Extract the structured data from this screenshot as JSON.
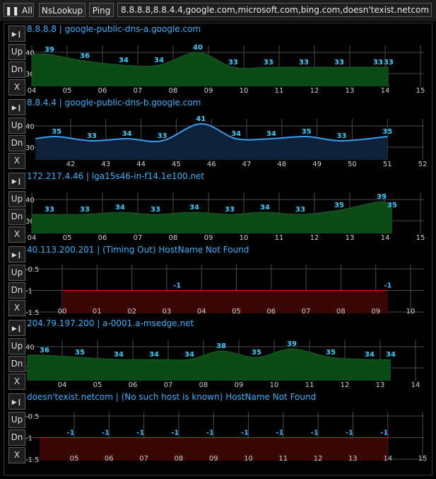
{
  "toolbar": {
    "all_label": "All",
    "nslookup_label": "NsLookup",
    "ping_label": "Ping",
    "hosts_value": "8.8.8.8,8.8.4.4,google.com,microsoft.com,bing.com,doesn'texist.netcom"
  },
  "side_buttons": {
    "up": "Up",
    "dn": "Dn",
    "x": "X"
  },
  "panels": [
    {
      "title": "8.8.8.8 | google-public-dns-a.google.com"
    },
    {
      "title": "8.8.4.4 | google-public-dns-b.google.com"
    },
    {
      "title": "172.217.4.46 | lga15s46-in-f14.1e100.net"
    },
    {
      "title": "40.113.200.201 | (Timing Out) HostName Not Found"
    },
    {
      "title": "204.79.197.200 | a-0001.a-msedge.net"
    },
    {
      "title": "doesn'texist.netcom | (No such host is known) HostName Not Found"
    }
  ],
  "colors": {
    "title": "#2fb3ff",
    "green_fill": "#0c4a16",
    "blue_fill": "#0d2238",
    "blue_line": "#3a9ef0",
    "red_fill": "#3a0505",
    "red_line": "#d02020"
  },
  "chart_data": [
    {
      "type": "area",
      "x_tick_labels": [
        "04",
        "05",
        "06",
        "07",
        "08",
        "09",
        "10",
        "11",
        "12",
        "13",
        "14",
        "15"
      ],
      "y_ticks": [
        40,
        30
      ],
      "ylim": [
        25,
        45
      ],
      "x": [
        4.0,
        4.5,
        5.5,
        6.6,
        7.6,
        8.7,
        9.7,
        10.7,
        11.7,
        12.7,
        13.8,
        14.1
      ],
      "values": [
        39,
        39,
        36,
        34,
        34,
        40,
        33,
        33,
        33,
        33,
        33,
        33
      ],
      "style": "green"
    },
    {
      "type": "line",
      "x_tick_labels": [
        "42",
        "43",
        "44",
        "45",
        "46",
        "47",
        "48",
        "49",
        "50",
        "51",
        "52"
      ],
      "y_ticks": [
        40,
        30
      ],
      "ylim": [
        25,
        45
      ],
      "x": [
        41.0,
        41.6,
        42.6,
        43.6,
        44.6,
        45.7,
        46.7,
        47.7,
        48.7,
        49.7,
        51.0
      ],
      "values": [
        34,
        35,
        33,
        34,
        33,
        41,
        34,
        34,
        35,
        33,
        35
      ],
      "style": "blue"
    },
    {
      "type": "area",
      "x_tick_labels": [
        "04",
        "05",
        "06",
        "07",
        "08",
        "09",
        "10",
        "11",
        "12",
        "13",
        "14",
        "15"
      ],
      "y_ticks": [
        40,
        30
      ],
      "ylim": [
        25,
        45
      ],
      "x": [
        4.0,
        4.5,
        5.5,
        6.5,
        7.5,
        8.6,
        9.6,
        10.6,
        11.6,
        12.7,
        13.9,
        14.2
      ],
      "values": [
        33,
        33,
        33,
        34,
        33,
        34,
        33,
        34,
        33,
        35,
        39,
        35
      ],
      "style": "green"
    },
    {
      "type": "area",
      "x_tick_labels": [
        "00",
        "01",
        "02",
        "03",
        "04",
        "05",
        "06",
        "07",
        "08",
        "09",
        "10"
      ],
      "y_ticks": [
        -0.5,
        -1,
        -1.5
      ],
      "ylim": [
        -1.6,
        -0.4
      ],
      "x": [
        0.0,
        3.3,
        9.35
      ],
      "values": [
        -1,
        -1,
        -1
      ],
      "labels_at": [
        3.3,
        9.35
      ],
      "style": "red"
    },
    {
      "type": "area",
      "x_tick_labels": [
        "04",
        "05",
        "06",
        "07",
        "08",
        "09",
        "10",
        "11",
        "12",
        "13",
        "14"
      ],
      "y_ticks": [
        40,
        30
      ],
      "ylim": [
        25,
        45
      ],
      "x": [
        4.0,
        4.5,
        5.5,
        6.6,
        7.6,
        8.6,
        9.5,
        10.5,
        11.5,
        12.6,
        13.7,
        14.3
      ],
      "values": [
        36,
        36,
        35,
        34,
        34,
        34,
        38,
        35,
        39,
        35,
        34,
        34
      ],
      "style": "green"
    },
    {
      "type": "area",
      "x_tick_labels": [
        "05",
        "06",
        "07",
        "08",
        "09",
        "10",
        "11",
        "12",
        "13",
        "14",
        "15"
      ],
      "y_ticks": [
        -0.5,
        -1,
        -1.5
      ],
      "ylim": [
        -1.6,
        -0.4
      ],
      "x": [
        4.0,
        5.0,
        6.0,
        7.0,
        8.0,
        9.0,
        10.0,
        11.0,
        12.0,
        13.0,
        14.0
      ],
      "values": [
        -1,
        -1,
        -1,
        -1,
        -1,
        -1,
        -1,
        -1,
        -1,
        -1,
        -1
      ],
      "labels_at": [
        4.9,
        5.9,
        6.9,
        7.9,
        8.9,
        9.9,
        10.9,
        11.9,
        12.9,
        13.9
      ],
      "style": "red"
    }
  ]
}
